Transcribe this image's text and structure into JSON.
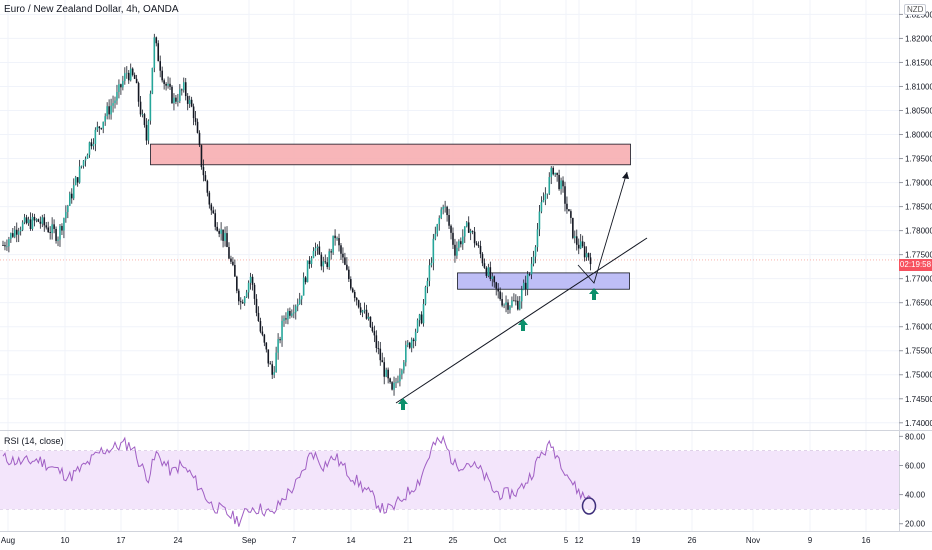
{
  "header": {
    "title": "Euro / New Zealand Dollar, 4h, OANDA",
    "currency": "NZD"
  },
  "rsi": {
    "label": "RSI (14, close)"
  },
  "last_price_label": "02:19:58",
  "colors": {
    "up": "#26a69a",
    "down": "#ef5350",
    "body": "#131722",
    "resistance_fill": "#f7a9ad",
    "support_fill": "#b3b3f5",
    "rsi_line": "#a05fc4",
    "rsi_band": "#f3e5fb",
    "arrow": "#0b8f6b",
    "price_line": "#f7a9a0",
    "circle": "#3d2e7a"
  },
  "chart_data": [
    {
      "type": "candlestick",
      "title": "Euro / New Zealand Dollar, 4h, OANDA",
      "x_ticks": [
        "Aug",
        "10",
        "17",
        "24",
        "Sep",
        "7",
        "14",
        "21",
        "25",
        "Oct",
        "5",
        "12",
        "19",
        "26",
        "Nov",
        "9",
        "16"
      ],
      "y_ticks": [
        "1.82500",
        "1.82000",
        "1.81500",
        "1.81000",
        "1.80500",
        "1.80000",
        "1.79500",
        "1.79000",
        "1.78500",
        "1.78000",
        "1.77500",
        "1.77000",
        "1.76500",
        "1.76000",
        "1.75500",
        "1.75000",
        "1.74500",
        "1.74000"
      ],
      "ylim": [
        1.7385,
        1.828
      ],
      "last_price": 1.7739,
      "anchors": [
        [
          0,
          1.777
        ],
        [
          8,
          1.781
        ],
        [
          18,
          1.782
        ],
        [
          28,
          1.779
        ],
        [
          36,
          1.789
        ],
        [
          44,
          1.798
        ],
        [
          52,
          1.804
        ],
        [
          58,
          1.808
        ],
        [
          63,
          1.813
        ],
        [
          67,
          1.8115
        ],
        [
          70,
          1.805
        ],
        [
          73,
          1.799
        ],
        [
          77,
          1.8195
        ],
        [
          82,
          1.811
        ],
        [
          87,
          1.807
        ],
        [
          92,
          1.8095
        ],
        [
          97,
          1.8045
        ],
        [
          101,
          1.794
        ],
        [
          106,
          1.784
        ],
        [
          113,
          1.778
        ],
        [
          121,
          1.765
        ],
        [
          126,
          1.7705
        ],
        [
          131,
          1.759
        ],
        [
          137,
          1.75
        ],
        [
          143,
          1.762
        ],
        [
          151,
          1.766
        ],
        [
          158,
          1.777
        ],
        [
          164,
          1.772
        ],
        [
          169,
          1.779
        ],
        [
          175,
          1.771
        ],
        [
          181,
          1.765
        ],
        [
          187,
          1.76
        ],
        [
          193,
          1.752
        ],
        [
          198,
          1.746
        ],
        [
          205,
          1.755
        ],
        [
          213,
          1.762
        ],
        [
          219,
          1.777
        ],
        [
          224,
          1.786
        ],
        [
          230,
          1.776
        ],
        [
          237,
          1.781
        ],
        [
          244,
          1.774
        ],
        [
          250,
          1.768
        ],
        [
          255,
          1.765
        ],
        [
          262,
          1.765
        ],
        [
          268,
          1.771
        ],
        [
          274,
          1.785
        ],
        [
          280,
          1.793
        ],
        [
          285,
          1.788
        ],
        [
          291,
          1.778
        ],
        [
          296,
          1.7755
        ],
        [
          299,
          1.7745
        ]
      ],
      "resistance_zone": {
        "from": 1.7937,
        "to": 1.798
      },
      "support_zone": {
        "from": 1.7678,
        "to": 1.7712
      }
    },
    {
      "type": "line",
      "title": "RSI (14, close)",
      "y_ticks": [
        "80.00",
        "60.00",
        "40.00",
        "20.00"
      ],
      "ylim": [
        15,
        83
      ],
      "band": [
        30,
        70
      ],
      "anchors": [
        [
          0,
          65
        ],
        [
          10,
          62
        ],
        [
          18,
          64
        ],
        [
          26,
          58
        ],
        [
          34,
          52
        ],
        [
          42,
          60
        ],
        [
          50,
          70
        ],
        [
          56,
          72
        ],
        [
          62,
          75
        ],
        [
          66,
          73
        ],
        [
          70,
          60
        ],
        [
          74,
          52
        ],
        [
          78,
          68
        ],
        [
          82,
          62
        ],
        [
          86,
          55
        ],
        [
          90,
          60
        ],
        [
          95,
          55
        ],
        [
          100,
          45
        ],
        [
          106,
          33
        ],
        [
          113,
          28
        ],
        [
          120,
          22
        ],
        [
          126,
          31
        ],
        [
          132,
          30
        ],
        [
          137,
          26
        ],
        [
          143,
          38
        ],
        [
          151,
          50
        ],
        [
          157,
          70
        ],
        [
          163,
          60
        ],
        [
          169,
          66
        ],
        [
          175,
          56
        ],
        [
          181,
          48
        ],
        [
          187,
          40
        ],
        [
          193,
          30
        ],
        [
          198,
          30
        ],
        [
          205,
          40
        ],
        [
          212,
          50
        ],
        [
          219,
          74
        ],
        [
          224,
          77
        ],
        [
          230,
          60
        ],
        [
          237,
          62
        ],
        [
          244,
          55
        ],
        [
          250,
          42
        ],
        [
          255,
          40
        ],
        [
          262,
          42
        ],
        [
          268,
          52
        ],
        [
          274,
          68
        ],
        [
          279,
          74
        ],
        [
          285,
          60
        ],
        [
          291,
          45
        ],
        [
          296,
          38
        ],
        [
          299,
          40
        ]
      ]
    }
  ]
}
